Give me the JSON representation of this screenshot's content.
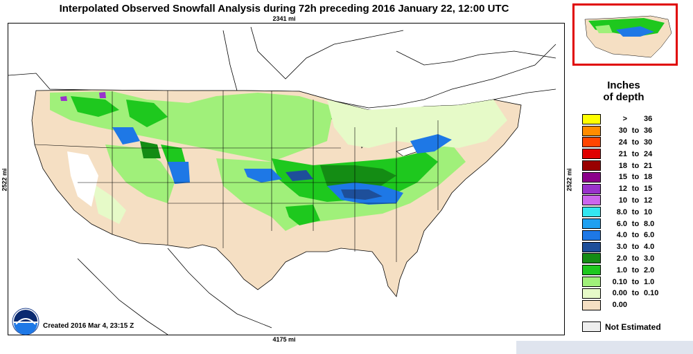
{
  "header": {
    "title": "Interpolated Observed Snowfall Analysis during 72h preceding 2016 January 22, 12:00 UTC",
    "dist_top": "2341 mi",
    "dist_bottom": "4175 mi",
    "dist_left": "2522 mi",
    "dist_right": "2522 mi"
  },
  "footer": {
    "created": "Created 2016 Mar 4, 23:15 Z",
    "logo_text": "NOAA"
  },
  "legend": {
    "title_line1": "Inches",
    "title_line2": "of depth",
    "rows": [
      {
        "a": ">",
        "to": "",
        "b": "36",
        "color": "#ffff00"
      },
      {
        "a": "30",
        "to": "to",
        "b": "36",
        "color": "#ff8c00"
      },
      {
        "a": "24",
        "to": "to",
        "b": "30",
        "color": "#ff4500"
      },
      {
        "a": "21",
        "to": "to",
        "b": "24",
        "color": "#e00000"
      },
      {
        "a": "18",
        "to": "to",
        "b": "21",
        "color": "#990000"
      },
      {
        "a": "15",
        "to": "to",
        "b": "18",
        "color": "#8b008b"
      },
      {
        "a": "12",
        "to": "to",
        "b": "15",
        "color": "#9932cc"
      },
      {
        "a": "10",
        "to": "to",
        "b": "12",
        "color": "#cc66ee"
      },
      {
        "a": "8.0",
        "to": "to",
        "b": "10",
        "color": "#33e6f0"
      },
      {
        "a": "6.0",
        "to": "to",
        "b": "8.0",
        "color": "#1ea0f0"
      },
      {
        "a": "4.0",
        "to": "to",
        "b": "6.0",
        "color": "#1e78e6"
      },
      {
        "a": "3.0",
        "to": "to",
        "b": "4.0",
        "color": "#1e4f9a"
      },
      {
        "a": "2.0",
        "to": "to",
        "b": "3.0",
        "color": "#148c14"
      },
      {
        "a": "1.0",
        "to": "to",
        "b": "2.0",
        "color": "#1ec81e"
      },
      {
        "a": "0.10",
        "to": "to",
        "b": "1.0",
        "color": "#a0f07a"
      },
      {
        "a": "0.00",
        "to": "to",
        "b": "0.10",
        "color": "#e6fac8"
      },
      {
        "a": "0.00",
        "to": "",
        "b": "",
        "color": "#f5dfc3"
      }
    ],
    "not_estimated": "Not Estimated",
    "not_estimated_color": "#eeeeee"
  }
}
